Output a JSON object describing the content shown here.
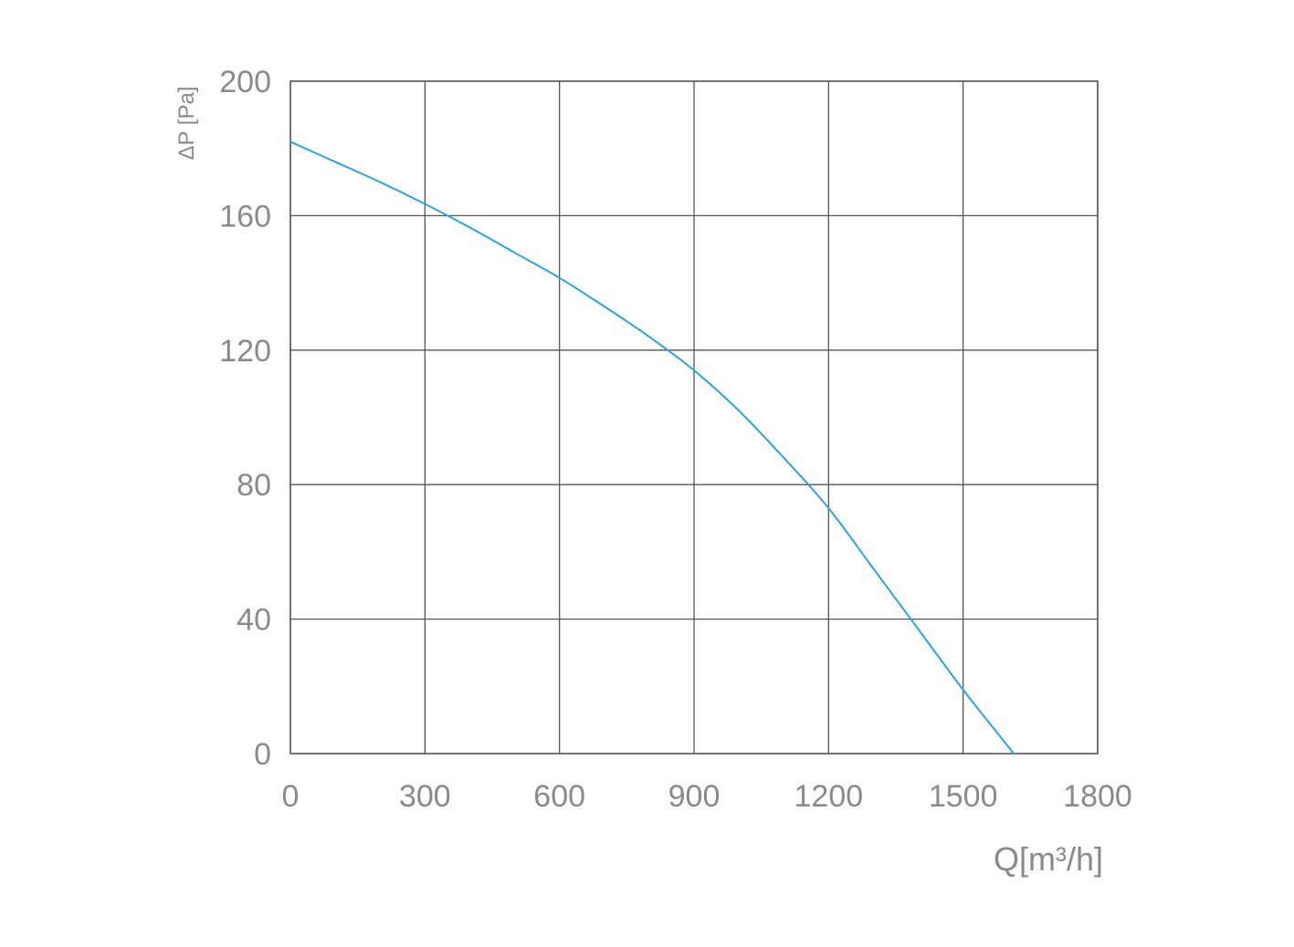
{
  "chart_data": {
    "type": "line",
    "xlabel": "Q[m³/h]",
    "ylabel": "ΔP [Pa]",
    "xlim": [
      0,
      1800
    ],
    "ylim": [
      0,
      200
    ],
    "x_ticks": [
      "0",
      "300",
      "600",
      "900",
      "1200",
      "1500",
      "1800"
    ],
    "y_ticks": [
      "0",
      "40",
      "80",
      "120",
      "160",
      "200"
    ],
    "grid": true,
    "series": [
      {
        "color": "#2fa3d6",
        "x": [
          0,
          100,
          200,
          300,
          400,
          500,
          600,
          700,
          800,
          900,
          1000,
          1100,
          1200,
          1300,
          1400,
          1500,
          1613
        ],
        "y": [
          182,
          176,
          170,
          163.5,
          156.5,
          149,
          141.5,
          133,
          124,
          114,
          102,
          88,
          73,
          55,
          37,
          19,
          0
        ]
      }
    ]
  },
  "colors": {
    "grid": "#555555",
    "tick_text": "#8a8a8a",
    "curve": "#2fa3d6"
  }
}
